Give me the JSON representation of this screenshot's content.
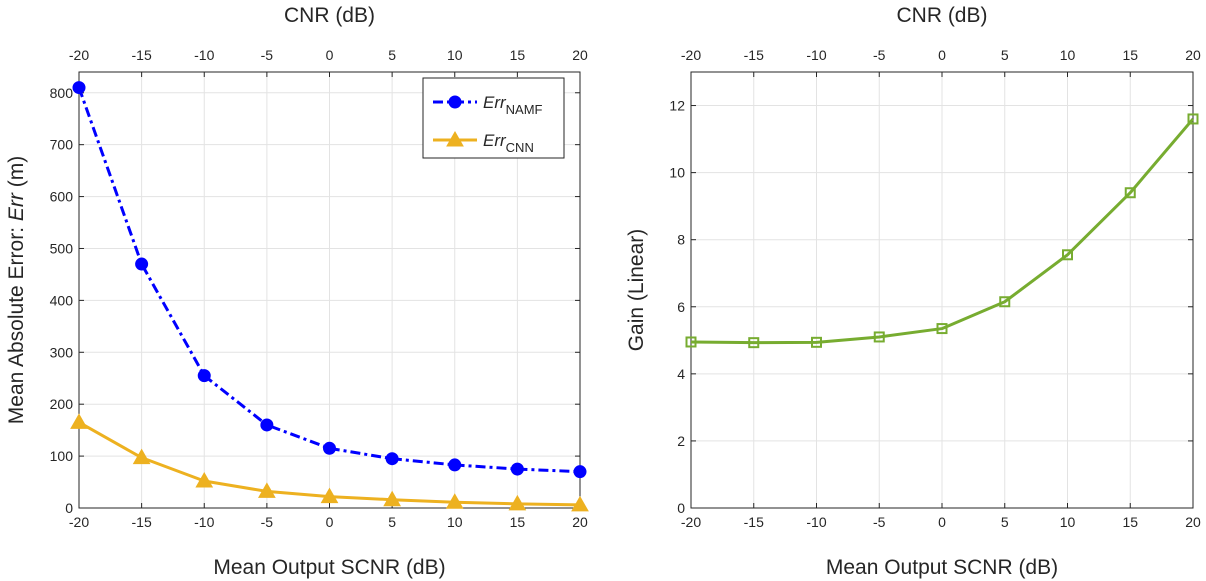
{
  "chart_data": [
    {
      "type": "line",
      "x": [
        -20,
        -15,
        -10,
        -5,
        0,
        5,
        10,
        15,
        20
      ],
      "xlabel": "Mean Output SCNR (dB)",
      "x2label": "CNR (dB)",
      "ylabel_prefix": "Mean Absolute Error: ",
      "ylabel_var": "Err",
      "ylabel_suffix": " (m)",
      "xlim": [
        -20,
        20
      ],
      "ylim": [
        0,
        840
      ],
      "xticks": [
        -20,
        -15,
        -10,
        -5,
        0,
        5,
        10,
        15,
        20
      ],
      "yticks": [
        0,
        100,
        200,
        300,
        400,
        500,
        600,
        700,
        800
      ],
      "grid": true,
      "legend_position": "top-right",
      "series": [
        {
          "name_main": "Err",
          "name_sub": "NAMF",
          "values": [
            810,
            470,
            255,
            160,
            115,
            95,
            83,
            75,
            70
          ],
          "color": "#0000ff",
          "dash": "10,4,3,4",
          "marker": "circle"
        },
        {
          "name_main": "Err",
          "name_sub": "CNN",
          "values": [
            165,
            97,
            52,
            32,
            22,
            16,
            11,
            8,
            6
          ],
          "color": "#edb120",
          "dash": "",
          "marker": "triangle"
        }
      ]
    },
    {
      "type": "line",
      "x": [
        -20,
        -15,
        -10,
        -5,
        0,
        5,
        10,
        15,
        20
      ],
      "xlabel": "Mean Output SCNR (dB)",
      "x2label": "CNR (dB)",
      "ylabel": "Gain (Linear)",
      "xlim": [
        -20,
        20
      ],
      "ylim": [
        0,
        13
      ],
      "xticks": [
        -20,
        -15,
        -10,
        -5,
        0,
        5,
        10,
        15,
        20
      ],
      "yticks": [
        0,
        2,
        4,
        6,
        8,
        10,
        12
      ],
      "grid": true,
      "series": [
        {
          "values": [
            4.95,
            4.93,
            4.94,
            5.1,
            5.35,
            6.15,
            7.55,
            9.4,
            11.6
          ],
          "color": "#77ac30",
          "dash": "",
          "marker": "square"
        }
      ]
    }
  ]
}
